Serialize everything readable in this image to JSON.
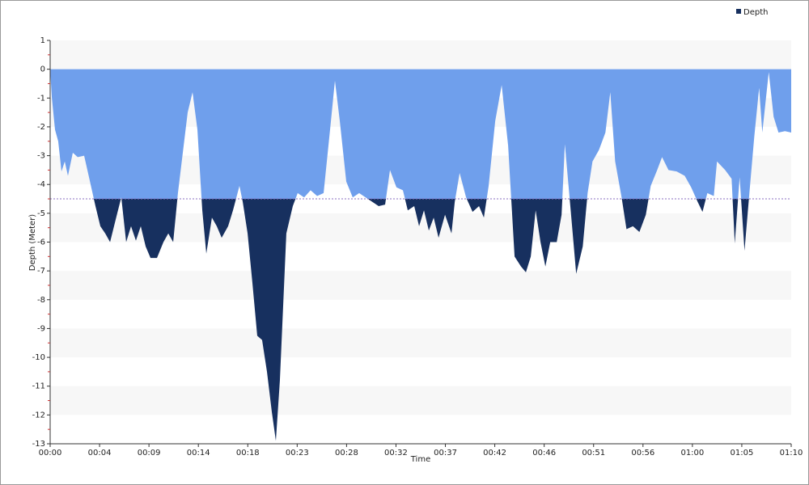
{
  "chart_data": {
    "type": "area",
    "ylabel": "Depth (Meter)",
    "xlabel": "Time",
    "legend": "top-right",
    "series": [
      {
        "name": "Depth",
        "color": "#6f9fec",
        "below_color": "#17305f",
        "x": [
          0,
          0.15,
          0.46,
          0.76,
          1.07,
          1.38,
          1.68,
          2.14,
          2.6,
          3.21,
          3.67,
          4.28,
          4.74,
          5.2,
          5.66,
          6.27,
          6.72,
          7.18,
          7.64,
          8.1,
          8.56,
          9.02,
          9.48,
          10.09,
          10.7,
          11.16,
          11.62,
          12.07,
          12.53,
          12.99,
          13.45,
          13.91,
          14.37,
          14.75,
          15.28,
          15.74,
          16.2,
          16.81,
          17.27,
          17.88,
          18.19,
          18.65,
          19.1,
          19.56,
          20.02,
          20.48,
          20.94,
          21.32,
          21.7,
          22.31,
          22.92,
          23.38,
          23.99,
          24.6,
          25.22,
          25.83,
          26.44,
          26.9,
          27.36,
          27.97,
          28.58,
          29.19,
          29.8,
          30.42,
          31.03,
          31.64,
          32.1,
          32.71,
          33.32,
          33.78,
          34.39,
          34.85,
          35.31,
          35.77,
          36.23,
          36.69,
          37.3,
          37.91,
          38.22,
          38.68,
          39.29,
          39.9,
          40.51,
          40.97,
          41.42,
          42.04,
          42.65,
          43.26,
          43.87,
          44.48,
          44.94,
          45.4,
          45.86,
          46.32,
          46.78,
          47.24,
          47.85,
          48.31,
          48.62,
          49.23,
          49.69,
          50.31,
          50.77,
          51.23,
          51.84,
          52.45,
          52.91,
          53.37,
          53.98,
          54.44,
          55.05,
          55.66,
          56.27,
          56.73,
          57.34,
          57.8,
          58.41,
          59.18,
          59.94,
          60.55,
          61.16,
          61.62,
          62.08,
          62.69,
          62.99,
          63.76,
          64.37,
          64.67,
          65.13,
          65.59,
          66.05,
          66.51,
          66.97,
          67.27,
          67.88,
          68.34,
          68.8,
          69.41,
          70
        ],
        "values": [
          0,
          -0.95,
          -2.1,
          -2.5,
          -3.55,
          -3.2,
          -3.7,
          -2.9,
          -3.05,
          -3.0,
          -3.75,
          -4.75,
          -5.45,
          -5.7,
          -6.0,
          -5.1,
          -4.45,
          -6.0,
          -5.45,
          -5.95,
          -5.45,
          -6.15,
          -6.55,
          -6.55,
          -6.0,
          -5.7,
          -6.0,
          -4.3,
          -2.9,
          -1.5,
          -0.8,
          -2.1,
          -4.9,
          -6.4,
          -5.15,
          -5.45,
          -5.85,
          -5.45,
          -4.9,
          -4.05,
          -4.6,
          -5.7,
          -7.4,
          -9.25,
          -9.4,
          -10.5,
          -11.9,
          -12.9,
          -10.8,
          -5.7,
          -4.75,
          -4.3,
          -4.45,
          -4.2,
          -4.4,
          -4.3,
          -2.1,
          -0.4,
          -1.8,
          -3.9,
          -4.45,
          -4.3,
          -4.45,
          -4.6,
          -4.75,
          -4.7,
          -3.5,
          -4.1,
          -4.2,
          -4.9,
          -4.75,
          -5.45,
          -4.9,
          -5.6,
          -5.15,
          -5.85,
          -5.05,
          -5.7,
          -4.6,
          -3.6,
          -4.45,
          -4.95,
          -4.75,
          -5.15,
          -4.05,
          -1.8,
          -0.55,
          -2.65,
          -6.5,
          -6.85,
          -7.05,
          -6.5,
          -4.9,
          -6.0,
          -6.85,
          -6.0,
          -6.0,
          -5.05,
          -2.6,
          -5.15,
          -7.1,
          -6.15,
          -4.3,
          -3.2,
          -2.8,
          -2.2,
          -0.8,
          -3.2,
          -4.45,
          -5.55,
          -5.45,
          -5.65,
          -5.05,
          -4.05,
          -3.5,
          -3.05,
          -3.5,
          -3.55,
          -3.7,
          -4.1,
          -4.6,
          -4.95,
          -4.3,
          -4.4,
          -3.2,
          -3.5,
          -3.8,
          -6.05,
          -3.75,
          -6.3,
          -4.3,
          -2.35,
          -0.65,
          -2.2,
          -0.1,
          -1.65,
          -2.2,
          -2.15,
          -2.2
        ]
      }
    ],
    "threshold": -4.5,
    "xlim": [
      0,
      70
    ],
    "xticks": [
      {
        "value": 0,
        "label": "00:00"
      },
      {
        "value": 4.667,
        "label": "00:04"
      },
      {
        "value": 9.333,
        "label": "00:09"
      },
      {
        "value": 14,
        "label": "00:14"
      },
      {
        "value": 18.667,
        "label": "00:18"
      },
      {
        "value": 23.333,
        "label": "00:23"
      },
      {
        "value": 28,
        "label": "00:28"
      },
      {
        "value": 32.667,
        "label": "00:32"
      },
      {
        "value": 37.333,
        "label": "00:37"
      },
      {
        "value": 42,
        "label": "00:42"
      },
      {
        "value": 46.667,
        "label": "00:46"
      },
      {
        "value": 51.333,
        "label": "00:51"
      },
      {
        "value": 56,
        "label": "00:56"
      },
      {
        "value": 60.667,
        "label": "01:00"
      },
      {
        "value": 65.333,
        "label": "01:05"
      },
      {
        "value": 70,
        "label": "01:10"
      }
    ],
    "ylim": [
      -13,
      1
    ],
    "yticks": [
      1,
      0,
      -1,
      -2,
      -3,
      -4,
      -5,
      -6,
      -7,
      -8,
      -9,
      -10,
      -11,
      -12,
      -13
    ],
    "grid": true
  }
}
